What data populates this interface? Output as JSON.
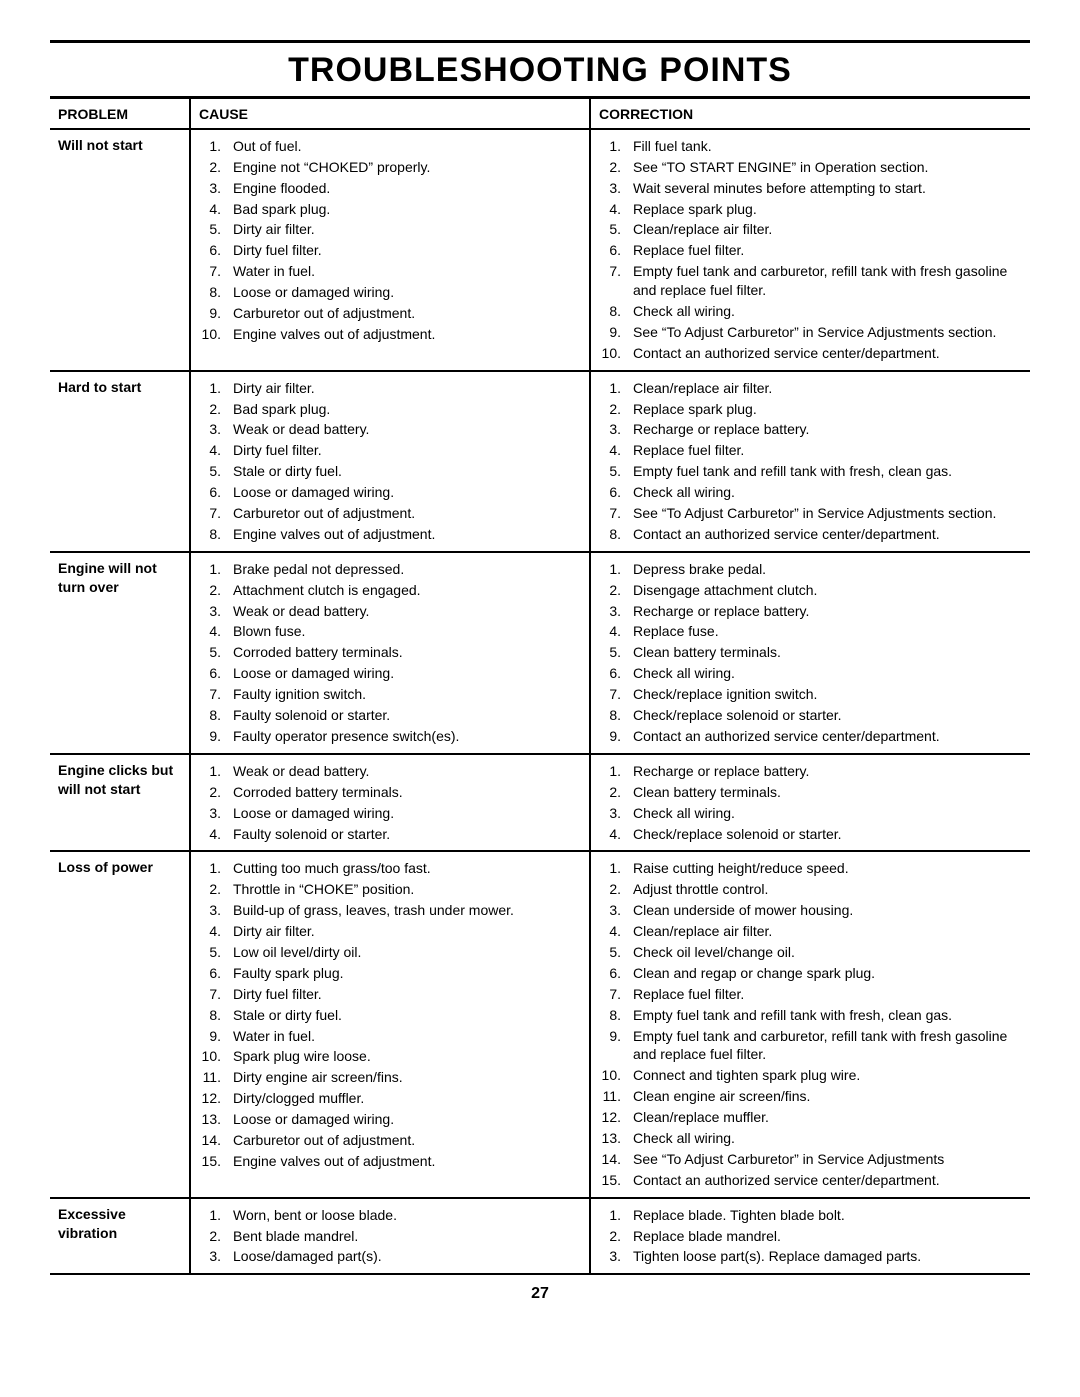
{
  "title": "TROUBLESHOOTING POINTS",
  "page_number": "27",
  "headers": {
    "problem": "PROBLEM",
    "cause": "CAUSE",
    "correction": "CORRECTION"
  },
  "sections": [
    {
      "problem": "Will not start",
      "causes": [
        "Out of fuel.",
        "Engine not “CHOKED” properly.",
        "Engine flooded.",
        "Bad spark plug.",
        "Dirty air filter.",
        "Dirty fuel filter.",
        "Water in fuel.",
        "Loose or damaged wiring.",
        "Carburetor out of adjustment.",
        "Engine valves out of adjustment."
      ],
      "corrections": [
        "Fill fuel tank.",
        "See “TO START ENGINE” in Operation section.",
        "Wait several minutes before attempting to start.",
        "Replace spark plug.",
        "Clean/replace air filter.",
        "Replace fuel filter.",
        "Empty fuel tank and carburetor, refill tank with fresh gasoline and replace fuel filter.",
        "Check all wiring.",
        "See “To Adjust Carburetor” in Service Adjustments section.",
        "Contact an authorized service center/department."
      ]
    },
    {
      "problem": "Hard to start",
      "causes": [
        "Dirty air filter.",
        "Bad spark plug.",
        "Weak or dead battery.",
        "Dirty fuel filter.",
        "Stale or dirty fuel.",
        "Loose or damaged wiring.",
        "Carburetor out of adjustment.",
        "Engine valves out of adjustment."
      ],
      "corrections": [
        "Clean/replace air filter.",
        "Replace spark plug.",
        "Recharge or replace battery.",
        "Replace fuel filter.",
        "Empty fuel tank and refill tank with fresh, clean gas.",
        "Check all wiring.",
        "See “To Adjust Carburetor” in Service Adjustments section.",
        "Contact an authorized service center/department."
      ]
    },
    {
      "problem": "Engine will not turn over",
      "causes": [
        "Brake pedal not depressed.",
        "Attachment clutch is engaged.",
        "Weak or dead battery.",
        "Blown fuse.",
        "Corroded battery terminals.",
        "Loose or damaged wiring.",
        "Faulty ignition switch.",
        "Faulty solenoid or starter.",
        "Faulty operator presence switch(es)."
      ],
      "corrections": [
        "Depress brake pedal.",
        "Disengage attachment clutch.",
        "Recharge or replace battery.",
        "Replace fuse.",
        "Clean battery terminals.",
        "Check all wiring.",
        "Check/replace ignition switch.",
        "Check/replace solenoid or starter.",
        "Contact an authorized service center/department."
      ]
    },
    {
      "problem": "Engine clicks but will not start",
      "causes": [
        "Weak or dead battery.",
        "Corroded battery terminals.",
        "Loose or damaged wiring.",
        "Faulty solenoid or starter."
      ],
      "corrections": [
        "Recharge or replace battery.",
        "Clean battery terminals.",
        "Check all wiring.",
        "Check/replace solenoid or starter."
      ]
    },
    {
      "problem": "Loss of power",
      "causes": [
        "Cutting too much grass/too fast.",
        "Throttle in “CHOKE” position.",
        "Build-up of grass, leaves, trash under mower.",
        "Dirty air filter.",
        "Low oil level/dirty oil.",
        "Faulty spark plug.",
        "Dirty fuel filter.",
        "Stale or dirty fuel.",
        "Water in fuel.",
        "Spark plug wire loose.",
        "Dirty engine air screen/fins.",
        "Dirty/clogged muffler.",
        "Loose or damaged wiring.",
        "Carburetor out of adjustment.",
        "Engine valves out of adjustment."
      ],
      "corrections": [
        "Raise cutting height/reduce speed.",
        "Adjust throttle control.",
        "Clean underside of mower housing.",
        "Clean/replace air filter.",
        "Check oil level/change oil.",
        "Clean and regap or change spark plug.",
        "Replace fuel filter.",
        "Empty fuel tank and refill tank with fresh, clean gas.",
        "Empty fuel tank and carburetor, refill tank with fresh gasoline and replace fuel filter.",
        "Connect and tighten spark plug wire.",
        "Clean engine air screen/fins.",
        "Clean/replace muffler.",
        "Check all wiring.",
        "See “To Adjust Carburetor” in Service Adjustments",
        "Contact an authorized service center/department."
      ]
    },
    {
      "problem": "Excessive vibration",
      "causes": [
        "Worn, bent or loose blade.",
        "Bent blade mandrel.",
        "Loose/damaged part(s)."
      ],
      "corrections": [
        "Replace blade. Tighten blade bolt.",
        "Replace blade mandrel.",
        "Tighten loose part(s). Replace damaged parts."
      ]
    }
  ]
}
